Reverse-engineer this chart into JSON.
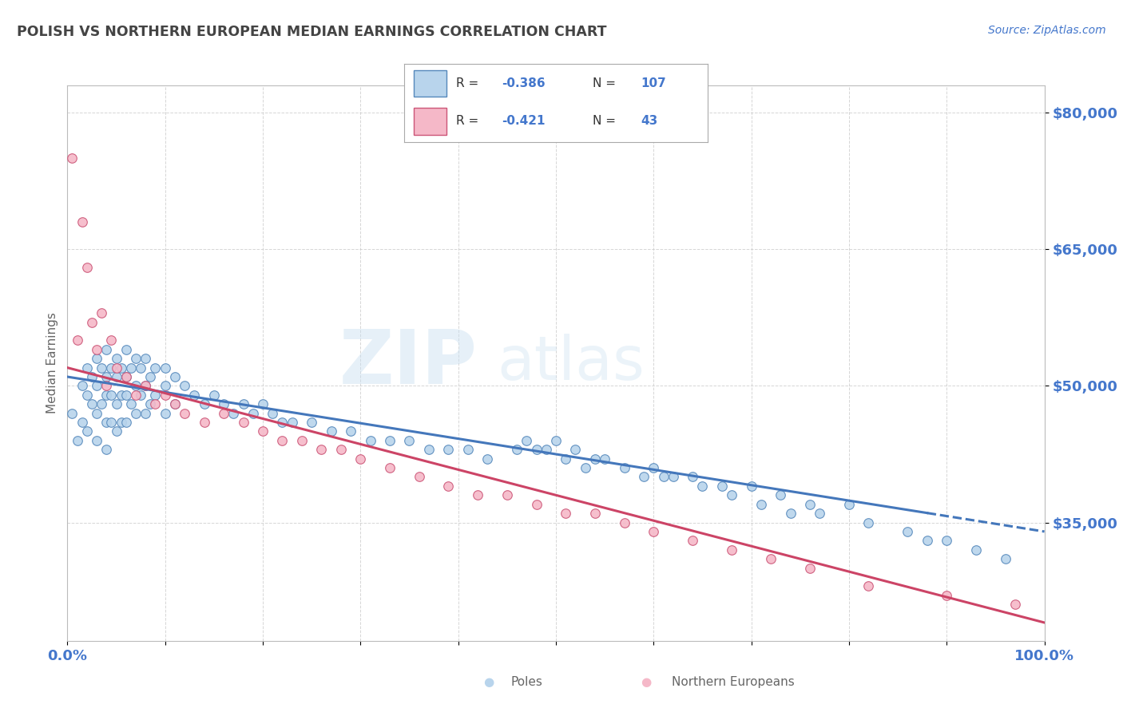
{
  "title": "POLISH VS NORTHERN EUROPEAN MEDIAN EARNINGS CORRELATION CHART",
  "source": "Source: ZipAtlas.com",
  "ylabel": "Median Earnings",
  "x_min": 0.0,
  "x_max": 1.0,
  "y_min": 22000,
  "y_max": 83000,
  "yticks": [
    35000,
    50000,
    65000,
    80000
  ],
  "ytick_labels": [
    "$35,000",
    "$50,000",
    "$65,000",
    "$80,000"
  ],
  "xticks": [
    0.0,
    0.1,
    0.2,
    0.3,
    0.4,
    0.5,
    0.6,
    0.7,
    0.8,
    0.9,
    1.0
  ],
  "xtick_labels": [
    "0.0%",
    "",
    "",
    "",
    "",
    "",
    "",
    "",
    "",
    "",
    "100.0%"
  ],
  "poles_color": "#b8d4ec",
  "northern_color": "#f5b8c8",
  "poles_edge_color": "#5588bb",
  "northern_edge_color": "#cc5577",
  "line_poles_color": "#4477bb",
  "line_northern_color": "#cc4466",
  "R_poles": -0.386,
  "N_poles": 107,
  "R_northern": -0.421,
  "N_northern": 43,
  "background_color": "#ffffff",
  "grid_color": "#cccccc",
  "title_color": "#444444",
  "axis_label_color": "#666666",
  "tick_label_color": "#4477cc",
  "watermark_zip": "ZIP",
  "watermark_atlas": "atlas",
  "legend_R_N_color": "#4477cc",
  "poles_scatter_x": [
    0.005,
    0.01,
    0.015,
    0.015,
    0.02,
    0.02,
    0.02,
    0.025,
    0.025,
    0.03,
    0.03,
    0.03,
    0.03,
    0.035,
    0.035,
    0.04,
    0.04,
    0.04,
    0.04,
    0.04,
    0.045,
    0.045,
    0.045,
    0.05,
    0.05,
    0.05,
    0.05,
    0.055,
    0.055,
    0.055,
    0.06,
    0.06,
    0.06,
    0.06,
    0.065,
    0.065,
    0.07,
    0.07,
    0.07,
    0.075,
    0.075,
    0.08,
    0.08,
    0.08,
    0.085,
    0.085,
    0.09,
    0.09,
    0.1,
    0.1,
    0.1,
    0.11,
    0.11,
    0.12,
    0.13,
    0.14,
    0.15,
    0.16,
    0.17,
    0.18,
    0.19,
    0.2,
    0.21,
    0.22,
    0.23,
    0.25,
    0.27,
    0.29,
    0.31,
    0.33,
    0.35,
    0.37,
    0.39,
    0.41,
    0.43,
    0.46,
    0.49,
    0.5,
    0.52,
    0.54,
    0.47,
    0.48,
    0.51,
    0.53,
    0.55,
    0.57,
    0.59,
    0.61,
    0.64,
    0.67,
    0.7,
    0.73,
    0.76,
    0.8,
    0.6,
    0.62,
    0.65,
    0.68,
    0.71,
    0.74,
    0.77,
    0.82,
    0.86,
    0.88,
    0.9,
    0.93,
    0.96
  ],
  "poles_scatter_y": [
    47000,
    44000,
    50000,
    46000,
    52000,
    49000,
    45000,
    51000,
    48000,
    53000,
    50000,
    47000,
    44000,
    52000,
    48000,
    54000,
    51000,
    49000,
    46000,
    43000,
    52000,
    49000,
    46000,
    53000,
    51000,
    48000,
    45000,
    52000,
    49000,
    46000,
    54000,
    51000,
    49000,
    46000,
    52000,
    48000,
    53000,
    50000,
    47000,
    52000,
    49000,
    53000,
    50000,
    47000,
    51000,
    48000,
    52000,
    49000,
    52000,
    50000,
    47000,
    51000,
    48000,
    50000,
    49000,
    48000,
    49000,
    48000,
    47000,
    48000,
    47000,
    48000,
    47000,
    46000,
    46000,
    46000,
    45000,
    45000,
    44000,
    44000,
    44000,
    43000,
    43000,
    43000,
    42000,
    43000,
    43000,
    44000,
    43000,
    42000,
    44000,
    43000,
    42000,
    41000,
    42000,
    41000,
    40000,
    40000,
    40000,
    39000,
    39000,
    38000,
    37000,
    37000,
    41000,
    40000,
    39000,
    38000,
    37000,
    36000,
    36000,
    35000,
    34000,
    33000,
    33000,
    32000,
    31000
  ],
  "northern_scatter_x": [
    0.005,
    0.01,
    0.015,
    0.02,
    0.025,
    0.03,
    0.035,
    0.04,
    0.045,
    0.05,
    0.06,
    0.07,
    0.08,
    0.09,
    0.1,
    0.11,
    0.12,
    0.14,
    0.16,
    0.18,
    0.2,
    0.22,
    0.24,
    0.26,
    0.28,
    0.3,
    0.33,
    0.36,
    0.39,
    0.42,
    0.45,
    0.48,
    0.51,
    0.54,
    0.57,
    0.6,
    0.64,
    0.68,
    0.72,
    0.76,
    0.82,
    0.9,
    0.97
  ],
  "northern_scatter_y": [
    75000,
    55000,
    68000,
    63000,
    57000,
    54000,
    58000,
    50000,
    55000,
    52000,
    51000,
    49000,
    50000,
    48000,
    49000,
    48000,
    47000,
    46000,
    47000,
    46000,
    45000,
    44000,
    44000,
    43000,
    43000,
    42000,
    41000,
    40000,
    39000,
    38000,
    38000,
    37000,
    36000,
    36000,
    35000,
    34000,
    33000,
    32000,
    31000,
    30000,
    28000,
    27000,
    26000
  ]
}
